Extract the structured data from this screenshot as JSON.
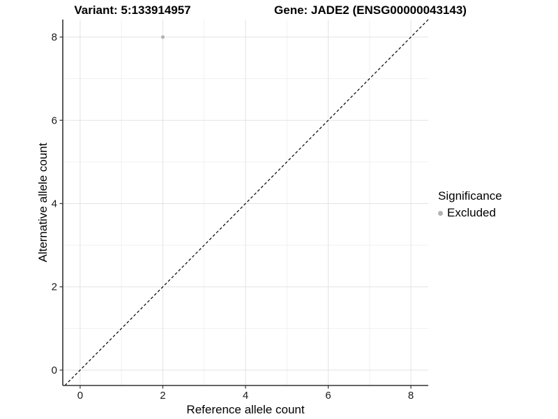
{
  "chart_data": {
    "type": "scatter",
    "title_left": "Variant: 5:133914957",
    "title_right": "Gene: JADE2 (ENSG00000043143)",
    "xlabel": "Reference allele count",
    "ylabel": "Alternative allele count",
    "xlim": [
      -0.42,
      8.42
    ],
    "ylim": [
      -0.37,
      8.42
    ],
    "x_ticks": [
      0,
      2,
      4,
      6,
      8
    ],
    "y_ticks": [
      0,
      2,
      4,
      6,
      8
    ],
    "x_minor": [
      1,
      3,
      5,
      7
    ],
    "y_minor": [
      1,
      3,
      5,
      7
    ],
    "grid": "on",
    "series": [
      {
        "name": "Excluded",
        "color": "#b3b3b3",
        "points": [
          {
            "x": 2,
            "y": 8
          }
        ]
      }
    ],
    "reference_line": {
      "type": "identity",
      "slope": 1,
      "intercept": 0,
      "style": "dashed",
      "color": "#000000"
    },
    "legend": {
      "title": "Significance",
      "position": "right",
      "entries": [
        {
          "label": "Excluded",
          "color": "#b3b3b3"
        }
      ]
    }
  },
  "colors": {
    "background": "#ffffff",
    "grid_major": "#e3e3e3",
    "grid_minor": "#f1f1f1",
    "axis": "#333333",
    "tick_text": "#1a1a1a",
    "point": "#b3b3b3"
  }
}
